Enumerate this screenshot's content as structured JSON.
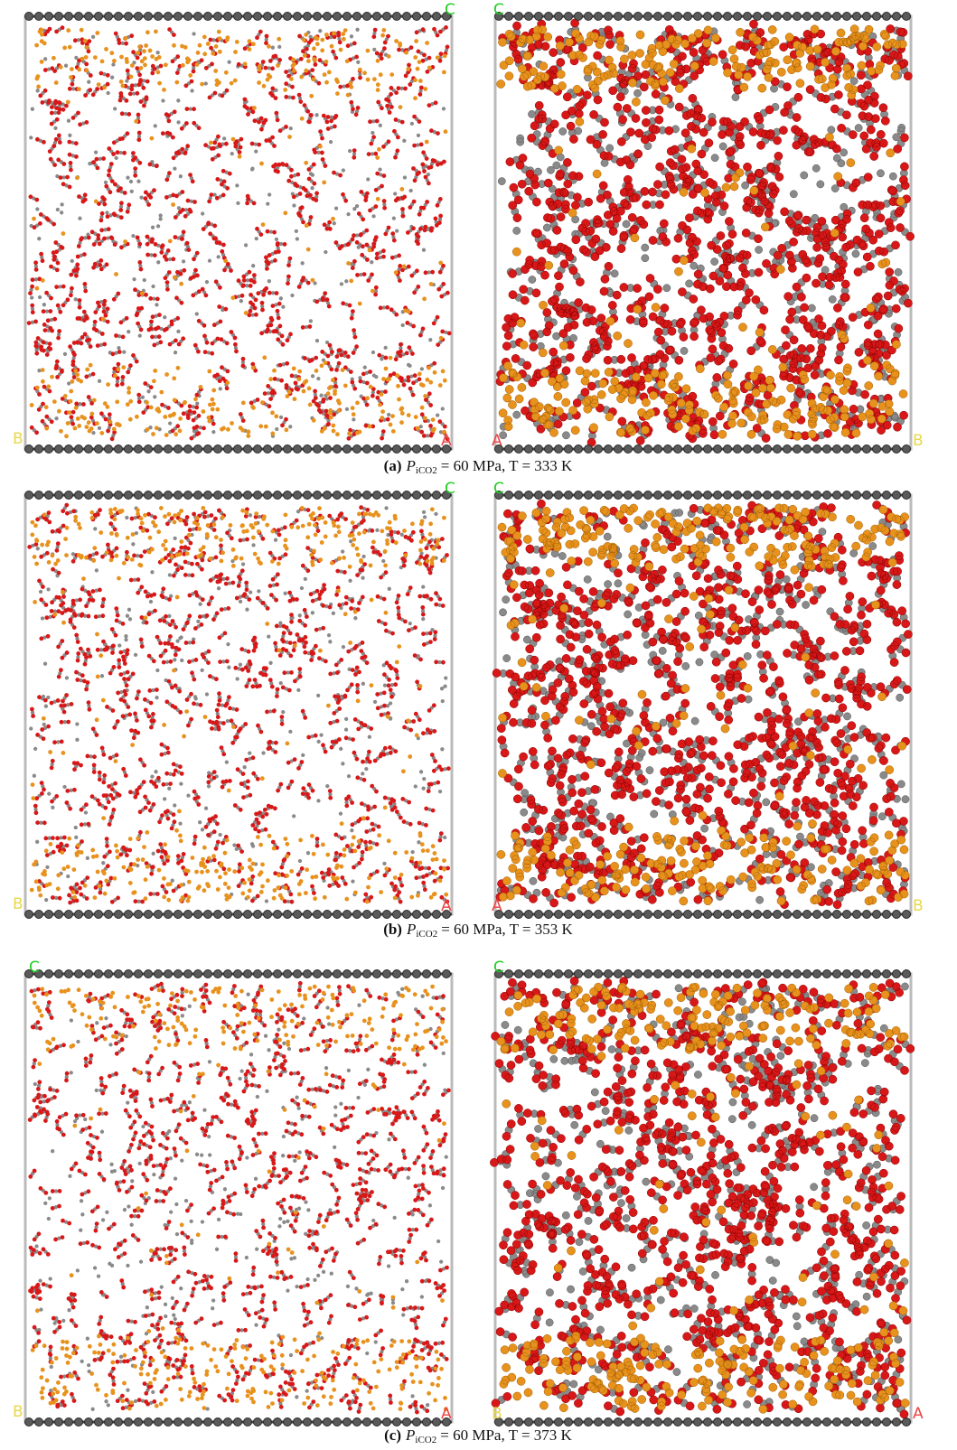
{
  "panels": [
    {
      "caption": {
        "label": "(a)",
        "symbol": "P",
        "subscript": "iCO2",
        "text": "= 60 MPa, T = 333 K"
      },
      "left_labels": [
        "C",
        "B",
        "A"
      ],
      "right_labels": [
        "C",
        "A",
        "B"
      ]
    },
    {
      "caption": {
        "label": "(b)",
        "symbol": "P",
        "subscript": "iCO2",
        "text": "= 60 MPa, T = 353 K"
      },
      "left_labels": [
        "C",
        "B",
        "A"
      ],
      "right_labels": [
        "C",
        "A",
        "B"
      ]
    },
    {
      "caption": {
        "label": "(c)",
        "symbol": "P",
        "subscript": "iCO2",
        "text": "= 60 MPa, T = 373 K"
      },
      "left_labels": [
        "C",
        "B",
        "A"
      ],
      "right_labels": [
        "C",
        "B",
        "A"
      ]
    }
  ]
}
